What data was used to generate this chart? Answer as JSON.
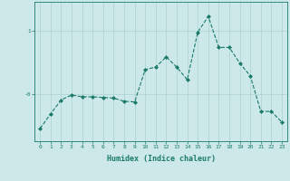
{
  "x": [
    0,
    1,
    2,
    3,
    4,
    5,
    6,
    7,
    8,
    9,
    10,
    11,
    12,
    13,
    14,
    15,
    16,
    17,
    18,
    19,
    20,
    21,
    22,
    23
  ],
  "y": [
    -0.55,
    -0.32,
    -0.1,
    -0.02,
    -0.05,
    -0.05,
    -0.06,
    -0.07,
    -0.12,
    -0.13,
    0.38,
    0.42,
    0.58,
    0.42,
    0.22,
    0.97,
    1.22,
    0.73,
    0.73,
    0.48,
    0.28,
    -0.28,
    -0.28,
    -0.45
  ],
  "line_color": "#1a7a6a",
  "marker_color": "#1a7a6a",
  "bg_color": "#cce8e8",
  "grid_color": "#aad0d0",
  "xlabel": "Humidex (Indice chaleur)",
  "xlim": [
    -0.5,
    23.5
  ],
  "ylim": [
    -0.75,
    1.45
  ],
  "tick_color": "#1a7a6a",
  "label_color": "#1a7a6a"
}
